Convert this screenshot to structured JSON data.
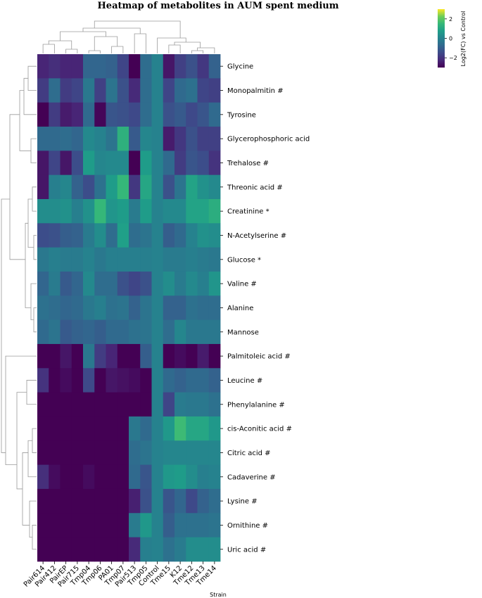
{
  "chart_data": {
    "type": "heatmap",
    "title": "Heatmap of metabolites in AUM spent medium",
    "xlabel": "Strain",
    "colorbar_label": "Log2(FC) vs Control",
    "colorbar_ticks": [
      2,
      0,
      -2
    ],
    "value_range": [
      -3,
      3
    ],
    "colormap": "viridis",
    "columns": [
      "Pair614",
      "Pair412",
      "PairEP",
      "Pair715",
      "Tmp04",
      "Tmp06",
      "PA01",
      "Tmp07",
      "Pair513",
      "Tmp05",
      "Control",
      "Tme15",
      "K12",
      "Tme12",
      "Tme13",
      "Tme14"
    ],
    "rows": [
      "Glycine",
      "Monopalmitin #",
      "Tyrosine",
      "Glycerophosphoric acid",
      "Trehalose #",
      "Threonic acid #",
      "Creatinine *",
      "N-Acetylserine #",
      "Glucose *",
      "Valine #",
      "Alanine",
      "Mannose",
      "Palmitoleic acid #",
      "Leucine #",
      "Phenylalanine #",
      "cis-Aconitic acid #",
      "Citric acid #",
      "Cadaverine #",
      "Lysine #",
      "Ornithine #",
      "Uric acid #"
    ],
    "values": [
      [
        -2.3,
        -2.1,
        -2.3,
        -2.3,
        -0.8,
        -0.8,
        -0.9,
        -1.6,
        -3.0,
        -0.6,
        0.0,
        -2.6,
        -1.7,
        -1.3,
        -1.9,
        -0.9
      ],
      [
        -1.8,
        -0.6,
        -1.8,
        -1.6,
        -0.3,
        -1.7,
        -0.4,
        -1.3,
        -2.2,
        -0.6,
        0.0,
        -1.6,
        -0.7,
        -0.5,
        -1.6,
        -1.7
      ],
      [
        -3.0,
        -1.8,
        -2.5,
        -2.3,
        -0.7,
        -2.9,
        -1.2,
        -1.3,
        -1.5,
        -0.6,
        0.0,
        -1.3,
        -1.1,
        -1.5,
        -1.2,
        -0.7
      ],
      [
        -0.7,
        -0.7,
        -0.6,
        -0.8,
        0.2,
        0.0,
        -0.4,
        1.3,
        -1.1,
        0.1,
        0.0,
        -2.5,
        -1.9,
        -1.3,
        -1.7,
        -1.7
      ],
      [
        -2.6,
        -1.6,
        -2.6,
        -1.4,
        0.7,
        0.1,
        0.2,
        0.2,
        -3.0,
        0.7,
        0.0,
        -0.7,
        -1.8,
        -1.2,
        -1.4,
        -2.0
      ],
      [
        -2.6,
        -0.1,
        0.1,
        -0.9,
        -1.4,
        -0.5,
        0.7,
        1.5,
        -1.9,
        1.0,
        0.0,
        -1.3,
        -0.4,
        0.9,
        0.4,
        0.2
      ],
      [
        0.3,
        0.3,
        0.4,
        -0.1,
        0.4,
        1.5,
        0.5,
        0.7,
        -0.2,
        0.7,
        0.0,
        0.2,
        0.2,
        0.9,
        0.9,
        1.2
      ],
      [
        -1.4,
        -1.3,
        -1.0,
        -0.9,
        -0.2,
        0.3,
        -0.6,
        0.8,
        -0.6,
        -0.4,
        0.0,
        -1.0,
        -0.7,
        0.0,
        0.4,
        0.3
      ],
      [
        -0.3,
        -0.1,
        -0.2,
        -0.2,
        0.0,
        -0.3,
        -0.1,
        -0.1,
        -0.1,
        -0.1,
        0.0,
        -0.2,
        -0.2,
        -0.1,
        -0.2,
        -0.3
      ],
      [
        -0.8,
        -0.2,
        -1.1,
        -0.8,
        0.2,
        -0.6,
        -0.6,
        -1.3,
        -1.6,
        -1.3,
        0.0,
        0.3,
        -0.2,
        0.2,
        -0.1,
        0.5
      ],
      [
        -0.5,
        -0.6,
        -0.8,
        -0.7,
        -0.3,
        -0.1,
        -0.5,
        -0.4,
        -0.9,
        -0.4,
        0.0,
        -0.9,
        -0.9,
        -0.5,
        -0.6,
        -0.6
      ],
      [
        -0.7,
        -0.4,
        -1.1,
        -0.9,
        -0.8,
        -1.0,
        -0.7,
        -0.7,
        -0.5,
        -0.4,
        0.0,
        -0.6,
        0.1,
        -0.3,
        -0.3,
        -0.3
      ],
      [
        -3.0,
        -3.0,
        -2.6,
        -3.0,
        -0.3,
        -1.8,
        -2.3,
        -3.0,
        -3.0,
        -1.0,
        0.0,
        -3.0,
        -2.8,
        -3.0,
        -2.5,
        -3.0
      ],
      [
        -2.0,
        -3.0,
        -2.8,
        -3.0,
        -1.5,
        -3.0,
        -2.6,
        -2.7,
        -2.8,
        -3.0,
        0.0,
        -0.7,
        -0.9,
        -0.7,
        -0.7,
        -0.9
      ],
      [
        -3.0,
        -3.0,
        -3.0,
        -3.0,
        -3.0,
        -3.0,
        -3.0,
        -3.0,
        -3.0,
        -3.0,
        0.0,
        -1.6,
        -0.2,
        -0.3,
        -0.3,
        -0.5
      ],
      [
        -3.0,
        -3.0,
        -3.0,
        -3.0,
        -3.0,
        -3.0,
        -3.0,
        -3.0,
        -0.3,
        -0.7,
        0.0,
        0.6,
        1.6,
        1.0,
        1.0,
        0.6
      ],
      [
        -3.0,
        -3.0,
        -3.0,
        -3.0,
        -3.0,
        -3.0,
        -3.0,
        -3.0,
        -0.6,
        -0.4,
        0.0,
        0.1,
        0.1,
        0.1,
        0.1,
        0.1
      ],
      [
        -2.1,
        -2.8,
        -3.0,
        -3.0,
        -2.8,
        -3.0,
        -3.0,
        -3.0,
        -0.7,
        -1.2,
        0.0,
        0.6,
        0.7,
        0.3,
        -0.1,
        0.0
      ],
      [
        -3.0,
        -3.0,
        -3.0,
        -3.0,
        -3.0,
        -3.0,
        -3.0,
        -3.0,
        -2.4,
        -1.3,
        0.0,
        -1.2,
        -0.8,
        -1.5,
        -0.9,
        -0.6
      ],
      [
        -3.0,
        -3.0,
        -3.0,
        -3.0,
        -3.0,
        -3.0,
        -3.0,
        -3.0,
        -0.2,
        0.6,
        0.0,
        -1.0,
        -0.5,
        -0.5,
        -0.5,
        -0.4
      ],
      [
        -3.0,
        -3.0,
        -3.0,
        -3.0,
        -3.0,
        -3.0,
        -3.0,
        -3.0,
        -2.2,
        -0.1,
        0.0,
        -0.5,
        -0.2,
        0.3,
        0.3,
        0.3
      ]
    ]
  }
}
